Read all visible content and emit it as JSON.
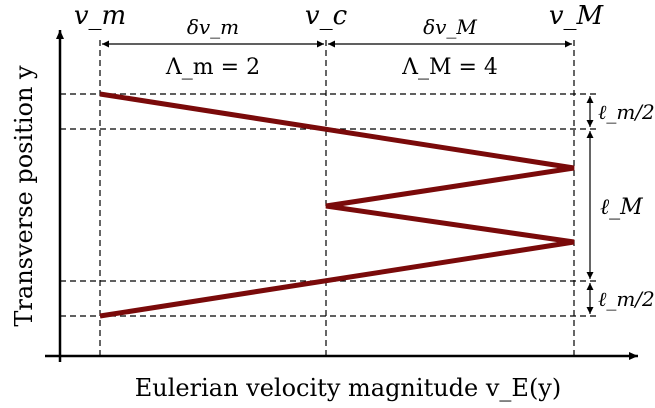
{
  "labels": {
    "y_axis": "Transverse position y",
    "x_axis": "Eulerian velocity magnitude v_E(y)",
    "v_m": "v_m",
    "v_c": "v_c",
    "v_M": "v_M",
    "delta_v_m": "δv_m",
    "delta_v_M": "δv_M",
    "lambda_m": "Λ_m = 2",
    "lambda_M": "Λ_M = 4",
    "ell_m_half_top": "ℓ_m/2",
    "ell_M": "ℓ_M",
    "ell_m_half_bottom": "ℓ_m/2"
  },
  "colors": {
    "profile": "#7a0a0a",
    "axes": "#000000",
    "dashed": "#000000"
  }
}
